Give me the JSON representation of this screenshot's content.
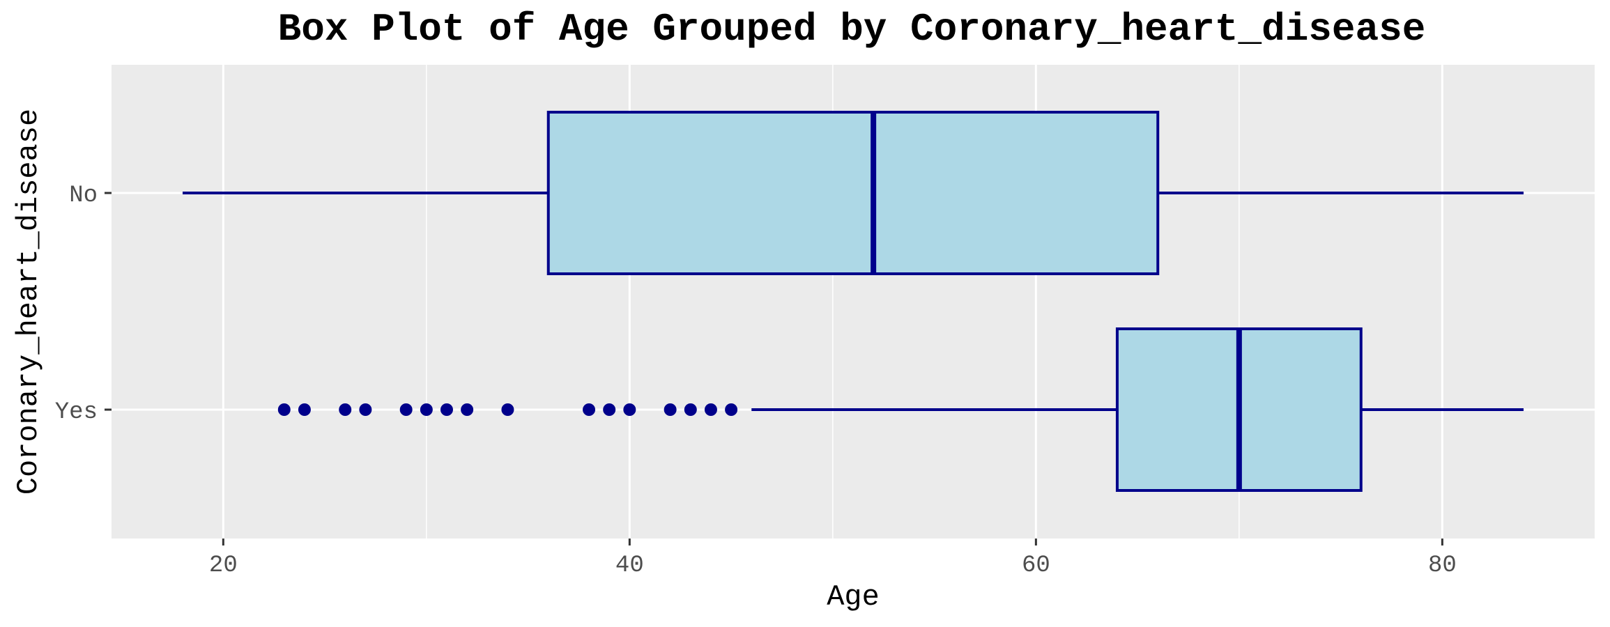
{
  "chart_data": {
    "type": "box",
    "orientation": "horizontal",
    "title": "Box Plot of Age Grouped by Coronary_heart_disease",
    "xlabel": "Age",
    "ylabel": "Coronary_heart_disease",
    "xlim": [
      14.5,
      87.5
    ],
    "x_ticks": [
      20,
      40,
      60,
      80
    ],
    "categories": [
      "No",
      "Yes"
    ],
    "grid": true,
    "legend": "none",
    "colors": {
      "panel_background": "#ebebeb",
      "gridline": "#ffffff",
      "box_fill": "#add8e6",
      "box_edge": "#00008b",
      "outlier": "#00008b"
    },
    "series": [
      {
        "category": "No",
        "whisker_low": 18,
        "q1": 36,
        "median": 52,
        "q3": 66,
        "whisker_high": 84,
        "outliers": []
      },
      {
        "category": "Yes",
        "whisker_low": 46,
        "q1": 64,
        "median": 70,
        "q3": 76,
        "whisker_high": 84,
        "outliers": [
          23,
          24,
          26,
          27,
          29,
          30,
          31,
          32,
          34,
          38,
          39,
          40,
          42,
          43,
          44,
          45
        ]
      }
    ]
  }
}
